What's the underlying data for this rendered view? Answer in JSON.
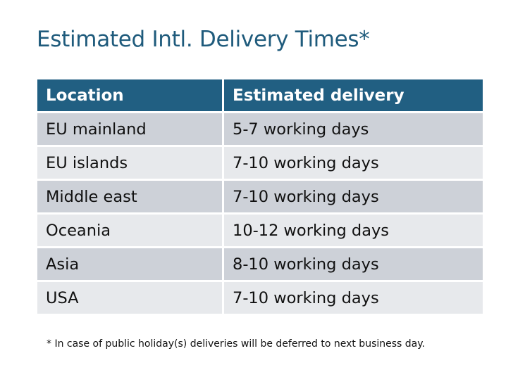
{
  "title": "Estimated Intl. Delivery Times*",
  "table": {
    "headers": [
      "Location",
      "Estimated delivery"
    ],
    "rows": [
      [
        "EU mainland",
        "5-7 working days"
      ],
      [
        "EU islands",
        "7-10 working days"
      ],
      [
        "Middle east",
        "7-10 working days"
      ],
      [
        "Oceania",
        "10-12 working days"
      ],
      [
        "Asia",
        "8-10 working days"
      ],
      [
        "USA",
        "7-10 working days"
      ]
    ]
  },
  "footnote": "* In case of public holiday(s) deliveries will be deferred to next business day.",
  "colors": {
    "header": "#215f82",
    "title": "#1f5b7c",
    "row_odd": "#cdd1d8",
    "row_even": "#e7e9ec"
  }
}
